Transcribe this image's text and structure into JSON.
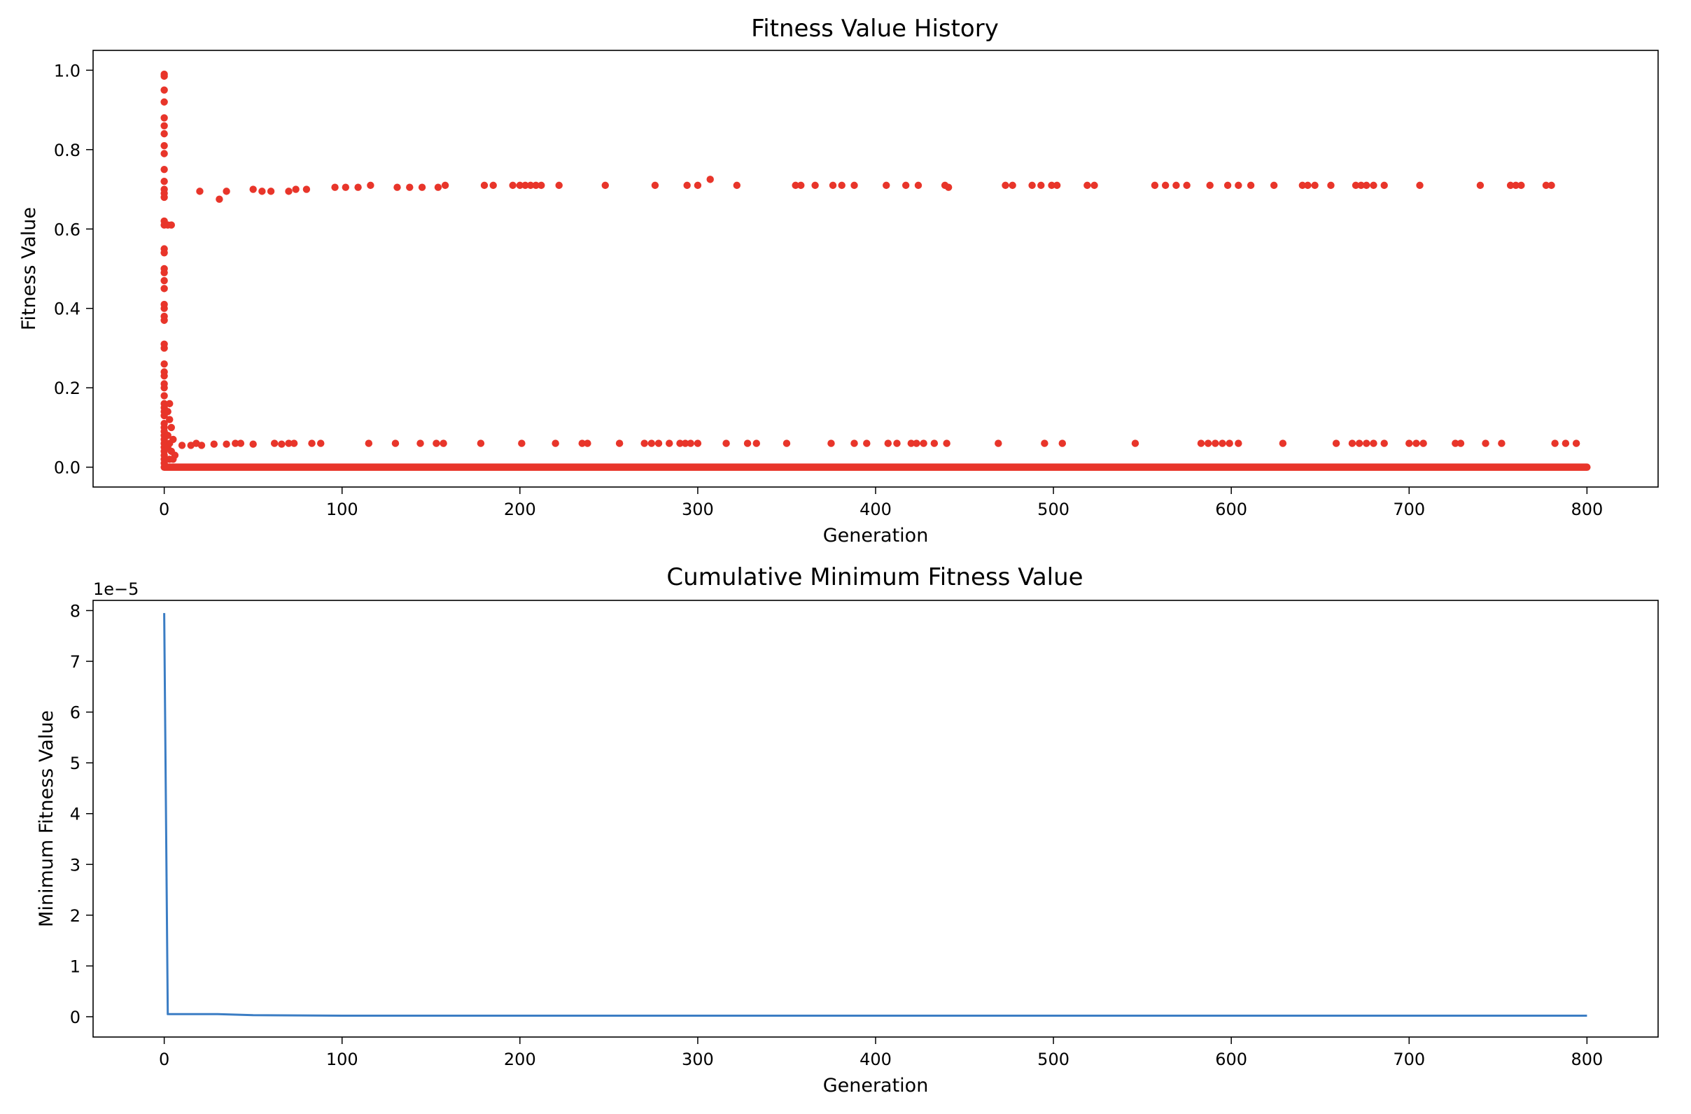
{
  "figure": {
    "scatter_color": "#e8352a",
    "line_color": "#3b7dc4"
  },
  "chart_data": [
    {
      "type": "scatter",
      "title": "Fitness Value History",
      "xlabel": "Generation",
      "ylabel": "Fitness Value",
      "xlim": [
        -40,
        840
      ],
      "ylim": [
        -0.05,
        1.05
      ],
      "xticks": [
        0,
        100,
        200,
        300,
        400,
        500,
        600,
        700,
        800
      ],
      "yticks": [
        0.0,
        0.2,
        0.4,
        0.6,
        0.8,
        1.0
      ],
      "xtick_labels": [
        "0",
        "100",
        "200",
        "300",
        "400",
        "500",
        "600",
        "700",
        "800"
      ],
      "ytick_labels": [
        "0.0",
        "0.2",
        "0.4",
        "0.6",
        "0.8",
        "1.0"
      ],
      "grid": false,
      "points_gen0": [
        0.99,
        0.985,
        0.95,
        0.92,
        0.88,
        0.86,
        0.84,
        0.81,
        0.79,
        0.75,
        0.72,
        0.7,
        0.69,
        0.68,
        0.62,
        0.61,
        0.55,
        0.54,
        0.5,
        0.49,
        0.47,
        0.45,
        0.41,
        0.4,
        0.38,
        0.37,
        0.31,
        0.3,
        0.26,
        0.24,
        0.23,
        0.21,
        0.2,
        0.18,
        0.16,
        0.15,
        0.14,
        0.13,
        0.11,
        0.1,
        0.09,
        0.08,
        0.07,
        0.06,
        0.05,
        0.04,
        0.03,
        0.02,
        0.01
      ],
      "points_early": [
        [
          2,
          0.61
        ],
        [
          4,
          0.61
        ],
        [
          3,
          0.16
        ],
        [
          2,
          0.14
        ],
        [
          3,
          0.12
        ],
        [
          4,
          0.1
        ],
        [
          2,
          0.08
        ],
        [
          5,
          0.07
        ],
        [
          3,
          0.06
        ],
        [
          2,
          0.05
        ],
        [
          4,
          0.04
        ],
        [
          6,
          0.03
        ],
        [
          3,
          0.02
        ],
        [
          5,
          0.02
        ]
      ],
      "points_high": [
        [
          20,
          0.695
        ],
        [
          31,
          0.675
        ],
        [
          35,
          0.695
        ],
        [
          50,
          0.7
        ],
        [
          55,
          0.695
        ],
        [
          60,
          0.695
        ],
        [
          70,
          0.695
        ],
        [
          74,
          0.7
        ],
        [
          80,
          0.7
        ],
        [
          96,
          0.705
        ],
        [
          102,
          0.705
        ],
        [
          109,
          0.705
        ],
        [
          116,
          0.71
        ],
        [
          131,
          0.705
        ],
        [
          138,
          0.705
        ],
        [
          145,
          0.705
        ],
        [
          154,
          0.705
        ],
        [
          158,
          0.71
        ],
        [
          180,
          0.71
        ],
        [
          185,
          0.71
        ],
        [
          196,
          0.71
        ],
        [
          200,
          0.71
        ],
        [
          203,
          0.71
        ],
        [
          206,
          0.71
        ],
        [
          209,
          0.71
        ],
        [
          212,
          0.71
        ],
        [
          222,
          0.71
        ],
        [
          248,
          0.71
        ],
        [
          276,
          0.71
        ],
        [
          294,
          0.71
        ],
        [
          300,
          0.71
        ],
        [
          307,
          0.725
        ],
        [
          322,
          0.71
        ],
        [
          355,
          0.71
        ],
        [
          358,
          0.71
        ],
        [
          366,
          0.71
        ],
        [
          376,
          0.71
        ],
        [
          381,
          0.71
        ],
        [
          388,
          0.71
        ],
        [
          406,
          0.71
        ],
        [
          417,
          0.71
        ],
        [
          424,
          0.71
        ],
        [
          439,
          0.71
        ],
        [
          441,
          0.705
        ],
        [
          473,
          0.71
        ],
        [
          477,
          0.71
        ],
        [
          488,
          0.71
        ],
        [
          493,
          0.71
        ],
        [
          499,
          0.71
        ],
        [
          502,
          0.71
        ],
        [
          519,
          0.71
        ],
        [
          523,
          0.71
        ],
        [
          557,
          0.71
        ],
        [
          563,
          0.71
        ],
        [
          569,
          0.71
        ],
        [
          575,
          0.71
        ],
        [
          588,
          0.71
        ],
        [
          598,
          0.71
        ],
        [
          604,
          0.71
        ],
        [
          611,
          0.71
        ],
        [
          624,
          0.71
        ],
        [
          640,
          0.71
        ],
        [
          643,
          0.71
        ],
        [
          647,
          0.71
        ],
        [
          656,
          0.71
        ],
        [
          670,
          0.71
        ],
        [
          673,
          0.71
        ],
        [
          676,
          0.71
        ],
        [
          680,
          0.71
        ],
        [
          686,
          0.71
        ],
        [
          706,
          0.71
        ],
        [
          740,
          0.71
        ],
        [
          757,
          0.71
        ],
        [
          760,
          0.71
        ],
        [
          763,
          0.71
        ],
        [
          777,
          0.71
        ],
        [
          780,
          0.71
        ]
      ],
      "points_mid": [
        [
          10,
          0.055
        ],
        [
          15,
          0.055
        ],
        [
          18,
          0.06
        ],
        [
          21,
          0.055
        ],
        [
          28,
          0.058
        ],
        [
          35,
          0.058
        ],
        [
          40,
          0.06
        ],
        [
          43,
          0.06
        ],
        [
          50,
          0.058
        ],
        [
          62,
          0.06
        ],
        [
          66,
          0.058
        ],
        [
          70,
          0.06
        ],
        [
          73,
          0.06
        ],
        [
          83,
          0.06
        ],
        [
          88,
          0.06
        ],
        [
          115,
          0.06
        ],
        [
          130,
          0.06
        ],
        [
          144,
          0.06
        ],
        [
          153,
          0.06
        ],
        [
          157,
          0.06
        ],
        [
          178,
          0.06
        ],
        [
          201,
          0.06
        ],
        [
          220,
          0.06
        ],
        [
          235,
          0.06
        ],
        [
          238,
          0.06
        ],
        [
          256,
          0.06
        ],
        [
          270,
          0.06
        ],
        [
          274,
          0.06
        ],
        [
          278,
          0.06
        ],
        [
          284,
          0.06
        ],
        [
          290,
          0.06
        ],
        [
          293,
          0.06
        ],
        [
          296,
          0.06
        ],
        [
          300,
          0.06
        ],
        [
          316,
          0.06
        ],
        [
          328,
          0.06
        ],
        [
          333,
          0.06
        ],
        [
          350,
          0.06
        ],
        [
          375,
          0.06
        ],
        [
          388,
          0.06
        ],
        [
          395,
          0.06
        ],
        [
          407,
          0.06
        ],
        [
          412,
          0.06
        ],
        [
          420,
          0.06
        ],
        [
          423,
          0.06
        ],
        [
          427,
          0.06
        ],
        [
          433,
          0.06
        ],
        [
          440,
          0.06
        ],
        [
          469,
          0.06
        ],
        [
          495,
          0.06
        ],
        [
          505,
          0.06
        ],
        [
          546,
          0.06
        ],
        [
          583,
          0.06
        ],
        [
          587,
          0.06
        ],
        [
          591,
          0.06
        ],
        [
          595,
          0.06
        ],
        [
          599,
          0.06
        ],
        [
          604,
          0.06
        ],
        [
          629,
          0.06
        ],
        [
          659,
          0.06
        ],
        [
          668,
          0.06
        ],
        [
          672,
          0.06
        ],
        [
          676,
          0.06
        ],
        [
          680,
          0.06
        ],
        [
          686,
          0.06
        ],
        [
          700,
          0.06
        ],
        [
          704,
          0.06
        ],
        [
          708,
          0.06
        ],
        [
          726,
          0.06
        ],
        [
          729,
          0.06
        ],
        [
          743,
          0.06
        ],
        [
          752,
          0.06
        ],
        [
          782,
          0.06
        ],
        [
          788,
          0.06
        ],
        [
          794,
          0.06
        ]
      ],
      "baseline": {
        "x_from": 0,
        "x_to": 800,
        "value": 0.0
      }
    },
    {
      "type": "line",
      "title": "Cumulative Minimum Fitness Value",
      "xlabel": "Generation",
      "ylabel": "Minimum Fitness Value",
      "offset_text": "1e−5",
      "xlim": [
        -40,
        840
      ],
      "ylim": [
        -0.4,
        8.2
      ],
      "xticks": [
        0,
        100,
        200,
        300,
        400,
        500,
        600,
        700,
        800
      ],
      "yticks": [
        0,
        1,
        2,
        3,
        4,
        5,
        6,
        7,
        8
      ],
      "xtick_labels": [
        "0",
        "100",
        "200",
        "300",
        "400",
        "500",
        "600",
        "700",
        "800"
      ],
      "ytick_labels": [
        "0",
        "1",
        "2",
        "3",
        "4",
        "5",
        "6",
        "7",
        "8"
      ],
      "grid": false,
      "x": [
        0,
        2,
        30,
        50,
        100,
        200,
        400,
        600,
        800
      ],
      "y": [
        7.95,
        0.05,
        0.05,
        0.03,
        0.02,
        0.02,
        0.02,
        0.02,
        0.02
      ]
    }
  ]
}
